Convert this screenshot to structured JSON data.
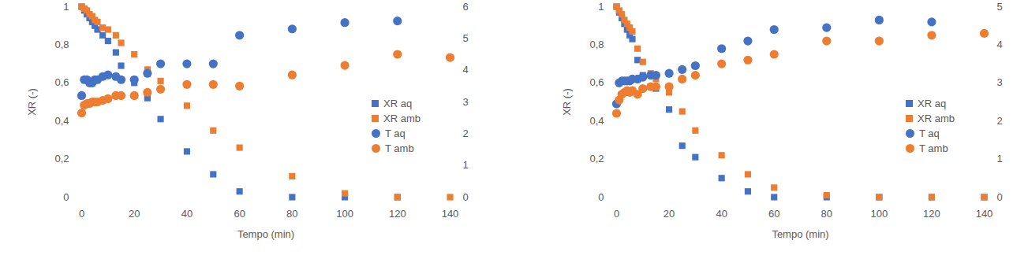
{
  "chart_data": [
    {
      "type": "scatter",
      "x_label": "Tempo (min)",
      "y_label": "XR (-)",
      "x": [
        0,
        1,
        2,
        3,
        4,
        5,
        6,
        8,
        10,
        13,
        15,
        20,
        25,
        30,
        40,
        50,
        60,
        80,
        100,
        120,
        140
      ],
      "xlim": [
        0,
        140
      ],
      "xticks": [
        0,
        20,
        40,
        60,
        80,
        100,
        120,
        140
      ],
      "ylim": [
        0,
        1
      ],
      "yticks": [
        0,
        {
          "value": 0.2,
          "label": "0,2"
        },
        {
          "value": 0.4,
          "label": "0,4"
        },
        {
          "value": 0.6,
          "label": "0,6"
        },
        {
          "value": 0.8,
          "label": "0,8"
        },
        1
      ],
      "y2lim": [
        0,
        6
      ],
      "y2ticks": [
        0,
        1,
        2,
        3,
        4,
        5,
        6
      ],
      "grid": false,
      "legend": "right",
      "series": [
        {
          "name": "XR aq",
          "color": "#4472c4",
          "marker": "square",
          "values": [
            1.0,
            0.98,
            0.96,
            0.94,
            0.92,
            0.9,
            0.88,
            0.85,
            0.82,
            0.76,
            0.69,
            0.6,
            0.52,
            0.41,
            0.24,
            0.12,
            0.03,
            0.0,
            0.0,
            0.0,
            null
          ]
        },
        {
          "name": "XR amb",
          "color": "#ed7d31",
          "marker": "square",
          "values": [
            1.0,
            0.99,
            0.98,
            0.96,
            0.95,
            0.93,
            0.92,
            0.89,
            0.88,
            0.85,
            0.81,
            0.75,
            0.67,
            0.61,
            0.48,
            0.35,
            0.26,
            0.11,
            0.02,
            0.0,
            0.0
          ]
        },
        {
          "name": "T aq",
          "color": "#4472c4",
          "marker": "circle",
          "axis": "y2",
          "values": [
            3.2,
            3.7,
            3.7,
            3.6,
            3.6,
            3.7,
            3.7,
            3.8,
            3.85,
            3.8,
            3.7,
            3.7,
            3.9,
            4.2,
            4.2,
            4.2,
            5.1,
            5.3,
            5.5,
            5.55,
            null
          ]
        },
        {
          "name": "T amb",
          "color": "#ed7d31",
          "marker": "circle",
          "axis": "y2",
          "values": [
            2.65,
            2.9,
            2.95,
            2.95,
            3.0,
            3.0,
            3.0,
            3.05,
            3.1,
            3.2,
            3.2,
            3.2,
            3.3,
            3.4,
            3.55,
            3.55,
            3.5,
            3.85,
            4.15,
            4.5,
            4.4
          ]
        }
      ]
    },
    {
      "type": "scatter",
      "x_label": "Tempo (min)",
      "y_label": "XR (-)",
      "x": [
        0,
        1,
        2,
        3,
        4,
        5,
        6,
        8,
        10,
        13,
        15,
        20,
        25,
        30,
        40,
        50,
        60,
        80,
        100,
        120,
        140
      ],
      "xlim": [
        0,
        140
      ],
      "xticks": [
        0,
        20,
        40,
        60,
        80,
        100,
        120,
        140
      ],
      "ylim": [
        0,
        1
      ],
      "yticks": [
        0,
        {
          "value": 0.2,
          "label": "0,2"
        },
        {
          "value": 0.4,
          "label": "0,4"
        },
        {
          "value": 0.6,
          "label": "0,6"
        },
        {
          "value": 0.8,
          "label": "0,8"
        },
        1
      ],
      "y2lim": [
        0,
        5
      ],
      "y2ticks": [
        0,
        1,
        2,
        3,
        4,
        5
      ],
      "grid": false,
      "legend": "right",
      "series": [
        {
          "name": "XR aq",
          "color": "#4472c4",
          "marker": "square",
          "values": [
            1.0,
            0.97,
            0.94,
            0.91,
            0.88,
            0.85,
            0.83,
            0.72,
            0.64,
            0.58,
            0.57,
            0.46,
            0.27,
            0.21,
            0.1,
            0.03,
            0.0,
            0.0,
            0.0,
            0.0,
            0.0
          ]
        },
        {
          "name": "XR amb",
          "color": "#ed7d31",
          "marker": "square",
          "values": [
            1.0,
            0.98,
            0.96,
            0.93,
            0.91,
            0.89,
            0.87,
            0.78,
            0.71,
            0.65,
            0.62,
            0.55,
            0.45,
            0.35,
            0.22,
            0.12,
            0.05,
            0.01,
            0.0,
            0.0,
            0.0
          ]
        },
        {
          "name": "T aq",
          "color": "#4472c4",
          "marker": "circle",
          "axis": "y2",
          "values": [
            2.45,
            3.0,
            3.05,
            3.05,
            3.05,
            3.05,
            3.1,
            3.1,
            3.15,
            3.2,
            3.2,
            3.25,
            3.35,
            3.45,
            3.9,
            4.1,
            4.4,
            4.45,
            4.65,
            4.6,
            null
          ]
        },
        {
          "name": "T amb",
          "color": "#ed7d31",
          "marker": "circle",
          "axis": "y2",
          "values": [
            2.2,
            2.55,
            2.7,
            2.75,
            2.8,
            2.75,
            2.8,
            2.7,
            2.85,
            2.9,
            2.9,
            2.9,
            3.1,
            3.2,
            3.5,
            3.6,
            3.75,
            4.1,
            4.1,
            4.25,
            4.3
          ]
        }
      ]
    }
  ]
}
